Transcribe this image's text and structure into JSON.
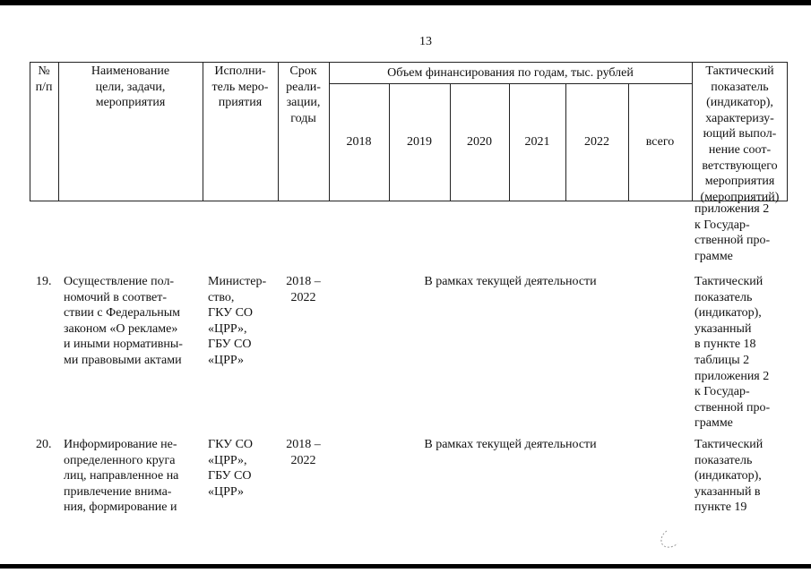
{
  "page_number": "13",
  "header": {
    "num": "№\nп/п",
    "name": "Наименование\nцели, задачи,\nмероприятия",
    "executor": "Исполни-\nтель меро-\nприятия",
    "term": "Срок\nреали-\nзации,\nгоды",
    "funding": "Объем финансирования по годам,  тыс. рублей",
    "years": [
      "2018",
      "2019",
      "2020",
      "2021",
      "2022",
      "всего"
    ],
    "indicator": "Тактический\nпоказатель\n(индикатор),\nхарактеризу-\nющий выпол-\nнение соот-\nветствующего\nмероприятия\n(мероприятий)"
  },
  "continuation": "приложения 2\nк Государ-\nственной про-\nграмме",
  "rows": [
    {
      "num": "19.",
      "name": "Осуществление пол-\nномочий в соответ-\nствии с Федеральным\nзаконом «О рекламе»\nи иными нормативны-\nми правовыми актами",
      "executor": "Министер-\nство,\nГКУ СО\n«ЦРР»,\nГБУ СО\n«ЦРР»",
      "term": "2018 –\n2022",
      "funding": "В рамках текущей деятельности",
      "indicator": "Тактический\nпоказатель\n(индикатор),\nуказанный\nв пункте 18\nтаблицы 2\nприложения 2\nк  Государ-\nственной про-\nграмме"
    },
    {
      "num": "20.",
      "name": "Информирование не-\nопределенного  круга\nлиц, направленное на\nпривлечение внима-\nния, формирование и",
      "executor": "ГКУ СО\n«ЦРР»,\nГБУ СО\n«ЦРР»",
      "term": "2018 –\n2022",
      "funding": "В рамках текущей деятельности",
      "indicator": "Тактический\nпоказатель\n(индикатор),\nуказанный  в\nпункте 19"
    }
  ]
}
